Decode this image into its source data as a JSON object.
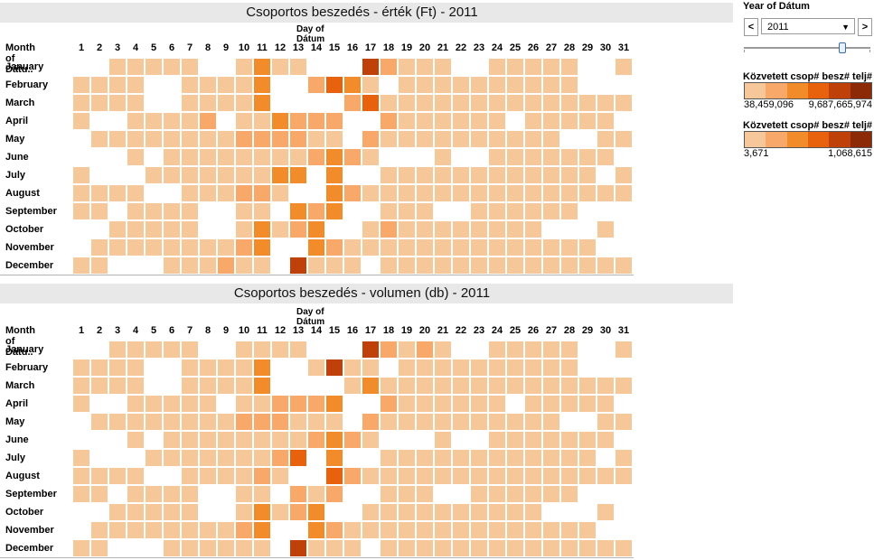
{
  "charts": [
    {
      "title": "Csoportos beszedés - érték (Ft) - 2011",
      "column_axis_title": "Day of Dátum",
      "row_axis_title": "Month of Dátu..",
      "chart_data": {
        "type": "heatmap",
        "title": "Csoportos beszedés - érték (Ft) - 2011",
        "x_title": "Day of Dátum",
        "y_title": "Month of Dátu..",
        "days": [
          "1",
          "2",
          "3",
          "4",
          "5",
          "6",
          "7",
          "8",
          "9",
          "10",
          "11",
          "12",
          "13",
          "14",
          "15",
          "16",
          "17",
          "18",
          "19",
          "20",
          "21",
          "22",
          "23",
          "24",
          "25",
          "26",
          "27",
          "28",
          "29",
          "30",
          "31"
        ],
        "months": [
          "January",
          "February",
          "March",
          "April",
          "May",
          "June",
          "July",
          "August",
          "September",
          "October",
          "November",
          "December"
        ],
        "color_scale": [
          "#ffffff",
          "#f6c799",
          "#f8a868",
          "#f28c2a",
          "#e8620e",
          "#c0400a",
          "#8c2a08"
        ],
        "levels": [
          [
            0,
            0,
            1,
            1,
            1,
            1,
            1,
            0,
            0,
            1,
            3,
            1,
            1,
            0,
            0,
            0,
            5,
            2,
            1,
            1,
            1,
            0,
            0,
            1,
            1,
            1,
            1,
            1,
            0,
            0,
            1
          ],
          [
            1,
            1,
            1,
            1,
            0,
            0,
            1,
            1,
            1,
            1,
            3,
            0,
            0,
            2,
            4,
            3,
            1,
            0,
            1,
            1,
            1,
            1,
            1,
            1,
            1,
            1,
            1,
            1,
            0,
            0,
            0
          ],
          [
            1,
            1,
            1,
            1,
            0,
            0,
            1,
            1,
            1,
            1,
            3,
            0,
            0,
            0,
            0,
            2,
            4,
            1,
            1,
            1,
            1,
            1,
            1,
            1,
            1,
            1,
            1,
            1,
            1,
            1,
            1
          ],
          [
            1,
            0,
            0,
            1,
            1,
            1,
            1,
            2,
            0,
            1,
            1,
            3,
            2,
            2,
            2,
            0,
            0,
            2,
            1,
            1,
            1,
            1,
            1,
            1,
            0,
            1,
            1,
            1,
            1,
            1,
            0
          ],
          [
            0,
            1,
            1,
            1,
            1,
            1,
            1,
            1,
            1,
            2,
            2,
            2,
            2,
            1,
            1,
            0,
            2,
            1,
            1,
            1,
            1,
            1,
            1,
            1,
            1,
            1,
            1,
            0,
            0,
            1,
            1
          ],
          [
            0,
            0,
            0,
            1,
            0,
            1,
            1,
            1,
            1,
            1,
            1,
            1,
            1,
            2,
            3,
            2,
            1,
            0,
            0,
            0,
            1,
            0,
            0,
            1,
            1,
            1,
            1,
            1,
            1,
            1,
            0
          ],
          [
            1,
            0,
            0,
            0,
            1,
            1,
            1,
            1,
            1,
            1,
            1,
            3,
            3,
            0,
            3,
            0,
            0,
            1,
            1,
            1,
            1,
            1,
            1,
            1,
            1,
            1,
            1,
            1,
            1,
            0,
            1
          ],
          [
            1,
            1,
            1,
            1,
            0,
            0,
            1,
            1,
            1,
            2,
            2,
            1,
            0,
            0,
            3,
            2,
            1,
            1,
            1,
            1,
            1,
            1,
            1,
            1,
            1,
            1,
            1,
            1,
            1,
            1,
            1
          ],
          [
            1,
            1,
            0,
            1,
            1,
            1,
            1,
            0,
            0,
            1,
            1,
            0,
            3,
            2,
            3,
            0,
            0,
            1,
            1,
            1,
            0,
            0,
            1,
            1,
            1,
            1,
            1,
            1,
            0,
            0,
            0
          ],
          [
            0,
            0,
            1,
            1,
            1,
            1,
            1,
            0,
            0,
            1,
            3,
            1,
            2,
            3,
            0,
            0,
            1,
            2,
            1,
            1,
            1,
            1,
            1,
            1,
            1,
            1,
            0,
            0,
            0,
            1,
            0
          ],
          [
            0,
            1,
            1,
            1,
            1,
            1,
            1,
            1,
            1,
            2,
            3,
            0,
            0,
            3,
            2,
            1,
            1,
            1,
            1,
            1,
            1,
            1,
            1,
            1,
            1,
            1,
            1,
            1,
            1,
            0,
            0
          ],
          [
            1,
            1,
            0,
            0,
            0,
            1,
            1,
            1,
            2,
            1,
            1,
            0,
            5,
            1,
            1,
            1,
            0,
            1,
            1,
            1,
            1,
            1,
            1,
            1,
            1,
            1,
            1,
            1,
            1,
            1,
            1
          ]
        ]
      }
    },
    {
      "title": "Csoportos beszedés - volumen (db) - 2011",
      "column_axis_title": "Day of Dátum",
      "row_axis_title": "Month of Dátu..",
      "chart_data": {
        "type": "heatmap",
        "title": "Csoportos beszedés - volumen (db) - 2011",
        "x_title": "Day of Dátum",
        "y_title": "Month of Dátu..",
        "days": [
          "1",
          "2",
          "3",
          "4",
          "5",
          "6",
          "7",
          "8",
          "9",
          "10",
          "11",
          "12",
          "13",
          "14",
          "15",
          "16",
          "17",
          "18",
          "19",
          "20",
          "21",
          "22",
          "23",
          "24",
          "25",
          "26",
          "27",
          "28",
          "29",
          "30",
          "31"
        ],
        "months": [
          "January",
          "February",
          "March",
          "April",
          "May",
          "June",
          "July",
          "August",
          "September",
          "October",
          "November",
          "December"
        ],
        "color_scale": [
          "#ffffff",
          "#f6c799",
          "#f8a868",
          "#f28c2a",
          "#e8620e",
          "#c0400a",
          "#8c2a08"
        ],
        "levels": [
          [
            0,
            0,
            1,
            1,
            1,
            1,
            1,
            0,
            0,
            1,
            1,
            1,
            1,
            0,
            0,
            0,
            5,
            2,
            1,
            2,
            1,
            0,
            0,
            1,
            1,
            1,
            1,
            1,
            0,
            0,
            1
          ],
          [
            1,
            1,
            1,
            1,
            0,
            0,
            1,
            1,
            1,
            1,
            3,
            0,
            0,
            1,
            5,
            1,
            1,
            0,
            1,
            1,
            1,
            1,
            1,
            1,
            1,
            1,
            1,
            1,
            0,
            0,
            0
          ],
          [
            1,
            1,
            1,
            1,
            0,
            0,
            1,
            1,
            1,
            1,
            3,
            0,
            0,
            0,
            0,
            1,
            3,
            1,
            1,
            1,
            1,
            1,
            1,
            1,
            1,
            1,
            1,
            1,
            1,
            1,
            1
          ],
          [
            1,
            0,
            0,
            1,
            1,
            1,
            1,
            1,
            0,
            1,
            1,
            2,
            2,
            2,
            3,
            0,
            0,
            2,
            1,
            1,
            1,
            1,
            1,
            1,
            0,
            1,
            1,
            1,
            1,
            1,
            0
          ],
          [
            0,
            1,
            1,
            1,
            1,
            1,
            1,
            1,
            1,
            2,
            2,
            2,
            1,
            1,
            1,
            0,
            2,
            1,
            1,
            1,
            1,
            1,
            1,
            1,
            1,
            1,
            1,
            0,
            0,
            1,
            1
          ],
          [
            0,
            0,
            0,
            1,
            0,
            1,
            1,
            1,
            1,
            1,
            1,
            1,
            1,
            2,
            3,
            2,
            1,
            0,
            0,
            0,
            1,
            0,
            0,
            1,
            1,
            1,
            1,
            1,
            1,
            1,
            0
          ],
          [
            1,
            0,
            0,
            0,
            1,
            1,
            1,
            1,
            1,
            1,
            1,
            2,
            4,
            0,
            3,
            0,
            0,
            1,
            1,
            1,
            1,
            1,
            1,
            1,
            1,
            1,
            1,
            1,
            1,
            0,
            1
          ],
          [
            1,
            1,
            1,
            1,
            0,
            0,
            1,
            1,
            1,
            1,
            2,
            1,
            0,
            0,
            4,
            2,
            1,
            1,
            1,
            1,
            1,
            1,
            1,
            1,
            1,
            1,
            1,
            1,
            1,
            1,
            1
          ],
          [
            1,
            1,
            0,
            1,
            1,
            1,
            1,
            0,
            0,
            1,
            1,
            0,
            2,
            1,
            2,
            0,
            0,
            1,
            1,
            1,
            0,
            0,
            1,
            1,
            1,
            1,
            1,
            1,
            0,
            0,
            0
          ],
          [
            0,
            0,
            1,
            1,
            1,
            1,
            1,
            0,
            0,
            1,
            3,
            1,
            2,
            3,
            0,
            0,
            1,
            1,
            1,
            1,
            1,
            1,
            1,
            1,
            1,
            1,
            0,
            0,
            0,
            1,
            0
          ],
          [
            0,
            1,
            1,
            1,
            1,
            1,
            1,
            1,
            1,
            2,
            3,
            0,
            0,
            3,
            2,
            1,
            1,
            1,
            1,
            1,
            1,
            1,
            1,
            1,
            1,
            1,
            1,
            1,
            1,
            0,
            0
          ],
          [
            1,
            1,
            0,
            0,
            0,
            1,
            1,
            1,
            1,
            1,
            1,
            0,
            5,
            1,
            1,
            1,
            0,
            1,
            1,
            1,
            1,
            1,
            1,
            1,
            1,
            1,
            1,
            1,
            1,
            1,
            1
          ]
        ]
      }
    }
  ],
  "sidebar": {
    "year_filter": {
      "title": "Year of Dátum",
      "selected": "2011",
      "prev_label": "<",
      "next_label": ">",
      "caret": "▼"
    },
    "legends": [
      {
        "title": "Közvetett csop# besz# telj# ..",
        "min_label": "38,459,096",
        "max_label": "9,687,665,974",
        "colors": [
          "#f6c799",
          "#f8a868",
          "#f28c2a",
          "#e8620e",
          "#c0400a",
          "#8c2a08"
        ]
      },
      {
        "title": "Közvetett csop# besz# telj# ..",
        "min_label": "3,671",
        "max_label": "1,068,615",
        "colors": [
          "#f6c799",
          "#f8a868",
          "#f28c2a",
          "#e8620e",
          "#c0400a",
          "#8c2a08"
        ]
      }
    ]
  }
}
